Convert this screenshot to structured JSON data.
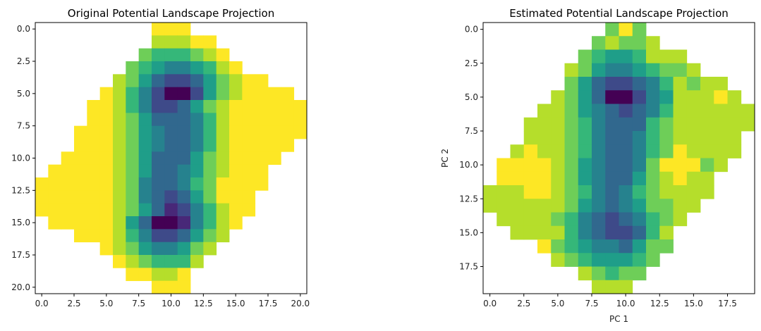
{
  "chart_data": [
    {
      "type": "heatmap",
      "title": "Original Potential Landscape Projection",
      "xlabel": "",
      "ylabel": "",
      "colormap": "viridis",
      "value_scale": [
        0,
        9
      ],
      "nan_color": "#ffffff",
      "xlim": [
        -0.5,
        20.5
      ],
      "ylim": [
        20.5,
        -0.5
      ],
      "xticks": [
        "0.0",
        "2.5",
        "5.0",
        "7.5",
        "10.0",
        "12.5",
        "15.0",
        "17.5",
        "20.0"
      ],
      "yticks": [
        "0.0",
        "2.5",
        "5.0",
        "7.5",
        "10.0",
        "12.5",
        "15.0",
        "17.5",
        "20.0"
      ],
      "size": 21,
      "rows": [
        {
          "start": 9,
          "values": [
            9,
            9,
            9
          ]
        },
        {
          "start": 9,
          "values": [
            8,
            8,
            8,
            9,
            9
          ]
        },
        {
          "start": 8,
          "values": [
            7,
            6,
            6,
            6,
            7,
            8,
            9
          ]
        },
        {
          "start": 7,
          "values": [
            7,
            6,
            5,
            4,
            4,
            5,
            6,
            8,
            9
          ]
        },
        {
          "start": 6,
          "values": [
            8,
            7,
            5,
            3,
            2,
            2,
            3,
            5,
            7,
            8,
            9,
            9
          ]
        },
        {
          "start": 5,
          "values": [
            9,
            8,
            6,
            4,
            2,
            0,
            0,
            2,
            5,
            7,
            8,
            9,
            9,
            9,
            9
          ]
        },
        {
          "start": 4,
          "values": [
            9,
            9,
            8,
            6,
            4,
            2,
            2,
            3,
            5,
            7,
            8,
            9,
            9,
            9,
            9,
            9,
            9
          ]
        },
        {
          "start": 4,
          "values": [
            9,
            9,
            8,
            7,
            5,
            3,
            3,
            3,
            4,
            6,
            8,
            9,
            9,
            9,
            9,
            9,
            9
          ]
        },
        {
          "start": 3,
          "values": [
            9,
            9,
            9,
            8,
            7,
            5,
            4,
            3,
            3,
            4,
            6,
            8,
            9,
            9,
            9,
            9,
            9,
            9
          ]
        },
        {
          "start": 3,
          "values": [
            9,
            9,
            9,
            8,
            7,
            5,
            4,
            3,
            3,
            4,
            6,
            8,
            9,
            9,
            9,
            9,
            9
          ]
        },
        {
          "start": 2,
          "values": [
            9,
            9,
            9,
            9,
            8,
            7,
            5,
            3,
            3,
            3,
            5,
            7,
            8,
            9,
            9,
            9,
            9
          ]
        },
        {
          "start": 1,
          "values": [
            9,
            9,
            9,
            9,
            9,
            8,
            7,
            5,
            3,
            3,
            4,
            5,
            7,
            8,
            9,
            9,
            9
          ]
        },
        {
          "start": 0,
          "values": [
            9,
            9,
            9,
            9,
            9,
            9,
            8,
            7,
            4,
            3,
            3,
            4,
            6,
            7,
            9,
            9,
            9,
            9
          ]
        },
        {
          "start": 0,
          "values": [
            9,
            9,
            9,
            9,
            9,
            9,
            8,
            7,
            4,
            3,
            2,
            3,
            5,
            7,
            9,
            9,
            9
          ]
        },
        {
          "start": 0,
          "values": [
            9,
            9,
            9,
            9,
            9,
            9,
            8,
            7,
            5,
            3,
            1,
            2,
            4,
            6,
            8,
            9,
            9
          ]
        },
        {
          "start": 1,
          "values": [
            9,
            9,
            9,
            9,
            9,
            8,
            5,
            3,
            0,
            0,
            1,
            4,
            6,
            8,
            9
          ]
        },
        {
          "start": 3,
          "values": [
            9,
            9,
            9,
            8,
            6,
            4,
            2,
            2,
            3,
            5,
            7,
            8
          ]
        },
        {
          "start": 5,
          "values": [
            9,
            8,
            7,
            5,
            4,
            4,
            5,
            7,
            8
          ]
        },
        {
          "start": 6,
          "values": [
            9,
            8,
            7,
            6,
            6,
            6,
            8
          ]
        },
        {
          "start": 7,
          "values": [
            9,
            9,
            8,
            8,
            9
          ]
        },
        {
          "start": 9,
          "values": [
            9,
            9,
            9
          ]
        }
      ]
    },
    {
      "type": "heatmap",
      "title": "Estimated Potential Landscape Projection",
      "xlabel": "PC 1",
      "ylabel": "PC 2",
      "colormap": "viridis",
      "value_scale": [
        0,
        9
      ],
      "nan_color": "#ffffff",
      "xlim": [
        -0.5,
        19.5
      ],
      "ylim": [
        19.5,
        -0.5
      ],
      "xticks": [
        "0.0",
        "2.5",
        "5.0",
        "7.5",
        "10.0",
        "12.5",
        "15.0",
        "17.5"
      ],
      "yticks": [
        "0.0",
        "2.5",
        "5.0",
        "7.5",
        "10.0",
        "12.5",
        "15.0",
        "17.5"
      ],
      "size": 20,
      "rows": [
        {
          "start": 9,
          "values": [
            7,
            9,
            7
          ]
        },
        {
          "start": 8,
          "values": [
            7,
            8,
            7,
            7,
            8
          ]
        },
        {
          "start": 7,
          "values": [
            7,
            6,
            5,
            5,
            6,
            8,
            8,
            8
          ]
        },
        {
          "start": 6,
          "values": [
            8,
            7,
            5,
            4,
            4,
            5,
            6,
            7,
            7,
            8
          ]
        },
        {
          "start": 6,
          "values": [
            7,
            5,
            3,
            2,
            2,
            3,
            4,
            6,
            8,
            7,
            8,
            8
          ]
        },
        {
          "start": 5,
          "values": [
            8,
            7,
            5,
            3,
            0,
            0,
            2,
            4,
            5,
            8,
            8,
            8,
            9,
            8
          ]
        },
        {
          "start": 4,
          "values": [
            8,
            8,
            7,
            5,
            4,
            3,
            2,
            3,
            4,
            6,
            8,
            8,
            8,
            8,
            8,
            8
          ]
        },
        {
          "start": 3,
          "values": [
            8,
            8,
            8,
            7,
            6,
            4,
            3,
            3,
            3,
            6,
            7,
            8,
            8,
            8,
            8,
            8,
            8
          ]
        },
        {
          "start": 3,
          "values": [
            8,
            8,
            8,
            7,
            6,
            4,
            3,
            3,
            4,
            6,
            7,
            8,
            8,
            8,
            8,
            8
          ]
        },
        {
          "start": 2,
          "values": [
            8,
            9,
            8,
            8,
            7,
            6,
            4,
            3,
            3,
            4,
            6,
            7,
            9,
            8,
            8,
            8,
            8
          ]
        },
        {
          "start": 1,
          "values": [
            9,
            9,
            9,
            9,
            8,
            7,
            5,
            4,
            3,
            3,
            4,
            7,
            9,
            9,
            9,
            7,
            8
          ]
        },
        {
          "start": 1,
          "values": [
            9,
            9,
            9,
            9,
            8,
            7,
            5,
            4,
            3,
            3,
            5,
            7,
            8,
            9,
            8,
            8
          ]
        },
        {
          "start": 0,
          "values": [
            8,
            8,
            8,
            9,
            9,
            8,
            7,
            6,
            4,
            3,
            4,
            6,
            7,
            8,
            8,
            8,
            8
          ]
        },
        {
          "start": 0,
          "values": [
            8,
            8,
            8,
            8,
            8,
            8,
            7,
            5,
            4,
            3,
            4,
            5,
            7,
            7,
            8,
            8
          ]
        },
        {
          "start": 1,
          "values": [
            8,
            8,
            8,
            8,
            7,
            6,
            4,
            3,
            2,
            3,
            4,
            6,
            7,
            8
          ]
        },
        {
          "start": 2,
          "values": [
            8,
            8,
            8,
            8,
            6,
            4,
            3,
            2,
            2,
            3,
            6,
            8
          ]
        },
        {
          "start": 4,
          "values": [
            9,
            7,
            6,
            5,
            4,
            4,
            3,
            5,
            7,
            7
          ]
        },
        {
          "start": 5,
          "values": [
            8,
            7,
            6,
            5,
            5,
            5,
            6,
            7
          ]
        },
        {
          "start": 7,
          "values": [
            8,
            7,
            6,
            7,
            7
          ]
        },
        {
          "start": 8,
          "values": [
            8,
            8,
            8
          ]
        }
      ]
    }
  ]
}
